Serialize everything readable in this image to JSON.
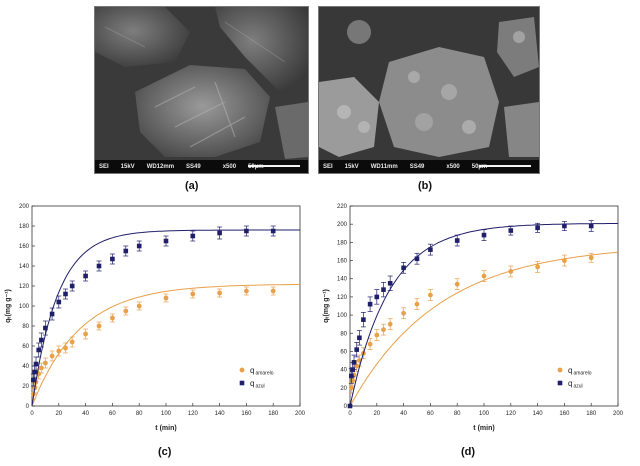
{
  "panels": [
    {
      "label": "(a)",
      "sem_bar": {
        "detector": "SEI",
        "voltage": "15kV",
        "wd": "WD12mm",
        "ss": "SS49",
        "mag": "x500",
        "scale": "50µm"
      }
    },
    {
      "label": "(b)",
      "sem_bar": {
        "detector": "SEI",
        "voltage": "15kV",
        "wd": "WD11mm",
        "ss": "SS49",
        "mag": "x500",
        "scale": "50µm"
      }
    },
    {
      "label": "(c)"
    },
    {
      "label": "(d)"
    }
  ],
  "colors": {
    "amarelo": "#e8a04a",
    "azul": "#1f1f6b"
  },
  "chart_data": [
    {
      "type": "scatter",
      "panel": "c",
      "xlabel": "t (min)",
      "ylabel": "qₜ(mg g⁻¹)",
      "xlim": [
        0,
        200
      ],
      "ylim": [
        0,
        200
      ],
      "xticks": [
        0,
        20,
        40,
        60,
        80,
        100,
        120,
        140,
        160,
        180,
        200
      ],
      "yticks": [
        0,
        20,
        40,
        60,
        80,
        100,
        120,
        140,
        160,
        180,
        200
      ],
      "legend": {
        "placement": "bottom-right",
        "entries": [
          {
            "q": "q",
            "sub": "amarelo"
          },
          {
            "q": "q",
            "sub": "azul"
          }
        ]
      },
      "series": [
        {
          "name": "q amarelo",
          "color": "#e8a04a",
          "marker": "circle",
          "x": [
            1,
            2,
            3,
            5,
            7,
            10,
            15,
            20,
            25,
            30,
            40,
            50,
            60,
            70,
            80,
            100,
            120,
            140,
            160,
            180
          ],
          "y": [
            12,
            18,
            24,
            32,
            38,
            43,
            50,
            55,
            58,
            64,
            72,
            80,
            88,
            95,
            100,
            108,
            112,
            113,
            115,
            115
          ],
          "err": [
            5,
            5,
            5,
            5,
            5,
            5,
            5,
            5,
            5,
            5,
            5,
            4,
            4,
            4,
            4,
            4,
            4,
            4,
            4,
            4
          ],
          "fit": {
            "qe": 122,
            "k": 0.028
          }
        },
        {
          "name": "q azul",
          "color": "#1f1f6b",
          "marker": "square",
          "x": [
            1,
            2,
            3,
            5,
            7,
            10,
            15,
            20,
            25,
            30,
            40,
            50,
            60,
            70,
            80,
            100,
            120,
            140,
            160,
            180
          ],
          "y": [
            26,
            34,
            42,
            56,
            66,
            78,
            92,
            104,
            112,
            120,
            130,
            140,
            147,
            155,
            160,
            165,
            170,
            173,
            175,
            175
          ],
          "err": [
            6,
            6,
            7,
            7,
            7,
            7,
            6,
            6,
            5,
            5,
            5,
            5,
            5,
            5,
            5,
            5,
            5,
            6,
            5,
            5
          ],
          "fit": {
            "qe": 176,
            "k": 0.052
          }
        }
      ]
    },
    {
      "type": "scatter",
      "panel": "d",
      "xlabel": "t (min)",
      "ylabel": "qₜ(mg g⁻¹)",
      "xlim": [
        0,
        200
      ],
      "ylim": [
        0,
        220
      ],
      "xticks": [
        0,
        20,
        40,
        60,
        80,
        100,
        120,
        140,
        160,
        180,
        200
      ],
      "yticks": [
        0,
        20,
        40,
        60,
        80,
        100,
        120,
        140,
        160,
        180,
        200,
        220
      ],
      "legend": {
        "placement": "bottom-right",
        "entries": [
          {
            "q": "q",
            "sub": "amarelo"
          },
          {
            "q": "q",
            "sub": "azul"
          }
        ]
      },
      "series": [
        {
          "name": "q amarelo",
          "color": "#e8a04a",
          "marker": "circle",
          "x": [
            1,
            2,
            3,
            5,
            7,
            10,
            15,
            20,
            25,
            30,
            40,
            50,
            60,
            80,
            100,
            120,
            140,
            160,
            180
          ],
          "y": [
            20,
            28,
            34,
            44,
            50,
            58,
            68,
            78,
            84,
            90,
            102,
            112,
            122,
            134,
            143,
            148,
            153,
            160,
            163
          ],
          "err": [
            6,
            6,
            6,
            6,
            6,
            6,
            6,
            6,
            6,
            6,
            6,
            6,
            6,
            6,
            6,
            6,
            6,
            6,
            5
          ],
          "fit": {
            "qe": 178,
            "k": 0.015
          }
        },
        {
          "name": "q azul",
          "color": "#1f1f6b",
          "marker": "square",
          "x": [
            0,
            1,
            2,
            3,
            5,
            7,
            10,
            15,
            20,
            25,
            30,
            40,
            50,
            60,
            80,
            100,
            120,
            140,
            160,
            180
          ],
          "y": [
            0,
            33,
            40,
            48,
            62,
            75,
            95,
            112,
            120,
            128,
            135,
            152,
            162,
            172,
            182,
            188,
            193,
            196,
            198,
            198
          ],
          "err": [
            0,
            8,
            8,
            8,
            8,
            8,
            8,
            8,
            8,
            8,
            8,
            6,
            6,
            6,
            6,
            6,
            5,
            5,
            5,
            6
          ],
          "fit": {
            "qe": 201,
            "k": 0.034
          }
        }
      ]
    }
  ]
}
